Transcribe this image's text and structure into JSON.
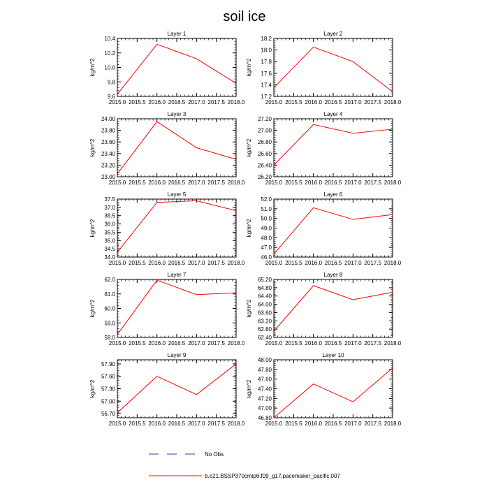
{
  "title": "soil ice",
  "colors": {
    "line": "#ff0000",
    "axis": "#000000",
    "legend_dash": "#3a3aa0"
  },
  "legend": {
    "items": [
      {
        "label": "No Obs",
        "style": "dashed"
      },
      {
        "label": "b.e21.BSSP370cmip6.f09_g17.pacemaker_pacific.007",
        "style": "solid"
      }
    ]
  },
  "chart_data": [
    {
      "type": "line",
      "title": "Layer 1",
      "ylabel": "kg/m^2",
      "x": [
        2015,
        2016,
        2017,
        2018
      ],
      "y": [
        9.63,
        10.32,
        10.12,
        9.78
      ],
      "xlim": [
        2015,
        2018
      ],
      "ylim": [
        9.6,
        10.4
      ],
      "xticks": [
        "2015.0",
        "2015.5",
        "2016.0",
        "2016.5",
        "2017.0",
        "2017.5",
        "2018.0"
      ],
      "yticks": [
        "9.6",
        "9.8",
        "10.0",
        "10.2",
        "10.4"
      ]
    },
    {
      "type": "line",
      "title": "Layer 2",
      "ylabel": "kg/m^2",
      "x": [
        2015,
        2016,
        2017,
        2018
      ],
      "y": [
        17.35,
        18.05,
        17.8,
        17.28
      ],
      "xlim": [
        2015,
        2018
      ],
      "ylim": [
        17.2,
        18.2
      ],
      "xticks": [
        "2015.0",
        "2015.5",
        "2016.0",
        "2016.5",
        "2017.0",
        "2017.5",
        "2018.0"
      ],
      "yticks": [
        "17.2",
        "17.4",
        "17.6",
        "17.8",
        "18.0",
        "18.2"
      ]
    },
    {
      "type": "line",
      "title": "Layer 3",
      "ylabel": "kg/m^2",
      "x": [
        2015,
        2016,
        2017,
        2018
      ],
      "y": [
        23.05,
        23.95,
        23.5,
        23.3
      ],
      "xlim": [
        2015,
        2018
      ],
      "ylim": [
        23.0,
        24.0
      ],
      "xticks": [
        "2015.0",
        "2015.5",
        "2016.0",
        "2016.5",
        "2017.0",
        "2017.5",
        "2018.0"
      ],
      "yticks": [
        "23.00",
        "23.20",
        "23.40",
        "23.60",
        "23.80",
        "24.00"
      ]
    },
    {
      "type": "line",
      "title": "Layer 4",
      "ylabel": "kg/m^2",
      "x": [
        2015,
        2016,
        2017,
        2018
      ],
      "y": [
        26.4,
        27.1,
        26.95,
        27.02
      ],
      "xlim": [
        2015,
        2018
      ],
      "ylim": [
        26.2,
        27.2
      ],
      "xticks": [
        "2015.0",
        "2015.5",
        "2016.0",
        "2016.5",
        "2017.0",
        "2017.5",
        "2018.0"
      ],
      "yticks": [
        "26.20",
        "26.40",
        "26.60",
        "26.80",
        "27.00",
        "27.20"
      ]
    },
    {
      "type": "line",
      "title": "Layer 5",
      "ylabel": "kg/m^2",
      "x": [
        2015,
        2016,
        2017,
        2018
      ],
      "y": [
        34.3,
        37.3,
        37.4,
        36.8
      ],
      "xlim": [
        2015,
        2018
      ],
      "ylim": [
        34.0,
        37.5
      ],
      "xticks": [
        "2015.0",
        "2015.5",
        "2016.0",
        "2016.5",
        "2017.0",
        "2017.5",
        "2018.0"
      ],
      "yticks": [
        "34.0",
        "34.5",
        "35.0",
        "35.5",
        "36.0",
        "36.5",
        "37.0",
        "37.5"
      ]
    },
    {
      "type": "line",
      "title": "Layer 6",
      "ylabel": "kg/m^2",
      "x": [
        2015,
        2016,
        2017,
        2018
      ],
      "y": [
        46.3,
        51.1,
        49.9,
        50.4
      ],
      "xlim": [
        2015,
        2018
      ],
      "ylim": [
        46.0,
        52.0
      ],
      "xticks": [
        "2015.0",
        "2015.5",
        "2016.0",
        "2016.5",
        "2017.0",
        "2017.5",
        "2018.0"
      ],
      "yticks": [
        "46.0",
        "47.0",
        "48.0",
        "49.0",
        "50.0",
        "51.0",
        "52.0"
      ]
    },
    {
      "type": "line",
      "title": "Layer 7",
      "ylabel": "kg/m^2",
      "x": [
        2015,
        2016,
        2017,
        2018
      ],
      "y": [
        58.2,
        61.95,
        60.95,
        61.08
      ],
      "xlim": [
        2015,
        2018
      ],
      "ylim": [
        58.0,
        62.0
      ],
      "xticks": [
        "2015.0",
        "2015.5",
        "2016.0",
        "2016.5",
        "2017.0",
        "2017.5",
        "2018.0"
      ],
      "yticks": [
        "58.0",
        "59.0",
        "60.0",
        "61.0",
        "62.0"
      ]
    },
    {
      "type": "line",
      "title": "Layer 8",
      "ylabel": "kg/m^2",
      "x": [
        2015,
        2016,
        2017,
        2018
      ],
      "y": [
        62.7,
        64.9,
        64.22,
        64.58
      ],
      "xlim": [
        2015,
        2018
      ],
      "ylim": [
        62.4,
        65.2
      ],
      "xticks": [
        "2015.0",
        "2015.5",
        "2016.0",
        "2016.5",
        "2017.0",
        "2017.5",
        "2018.0"
      ],
      "yticks": [
        "62.40",
        "62.80",
        "63.20",
        "63.60",
        "64.00",
        "64.40",
        "64.80",
        "65.20"
      ]
    },
    {
      "type": "line",
      "title": "Layer 9",
      "ylabel": "kg/m^2",
      "x": [
        2015,
        2016,
        2017,
        2018
      ],
      "y": [
        56.72,
        57.6,
        57.16,
        57.9
      ],
      "xlim": [
        2015,
        2018
      ],
      "ylim": [
        56.6,
        58.0
      ],
      "xticks": [
        "2015.0",
        "2015.5",
        "2016.0",
        "2016.5",
        "2017.0",
        "2017.5",
        "2018.0"
      ],
      "yticks": [
        "56.70",
        "57.00",
        "57.30",
        "57.60",
        "57.90"
      ]
    },
    {
      "type": "line",
      "title": "Layer 10",
      "ylabel": "kg/m^2",
      "x": [
        2015,
        2016,
        2017,
        2018
      ],
      "y": [
        46.8,
        47.5,
        47.13,
        47.83
      ],
      "xlim": [
        2015,
        2018
      ],
      "ylim": [
        46.8,
        48.0
      ],
      "xticks": [
        "2015.0",
        "2015.5",
        "2016.0",
        "2016.5",
        "2017.0",
        "2017.5",
        "2018.0"
      ],
      "yticks": [
        "46.80",
        "47.00",
        "47.20",
        "47.40",
        "47.60",
        "47.80",
        "48.00"
      ]
    }
  ]
}
